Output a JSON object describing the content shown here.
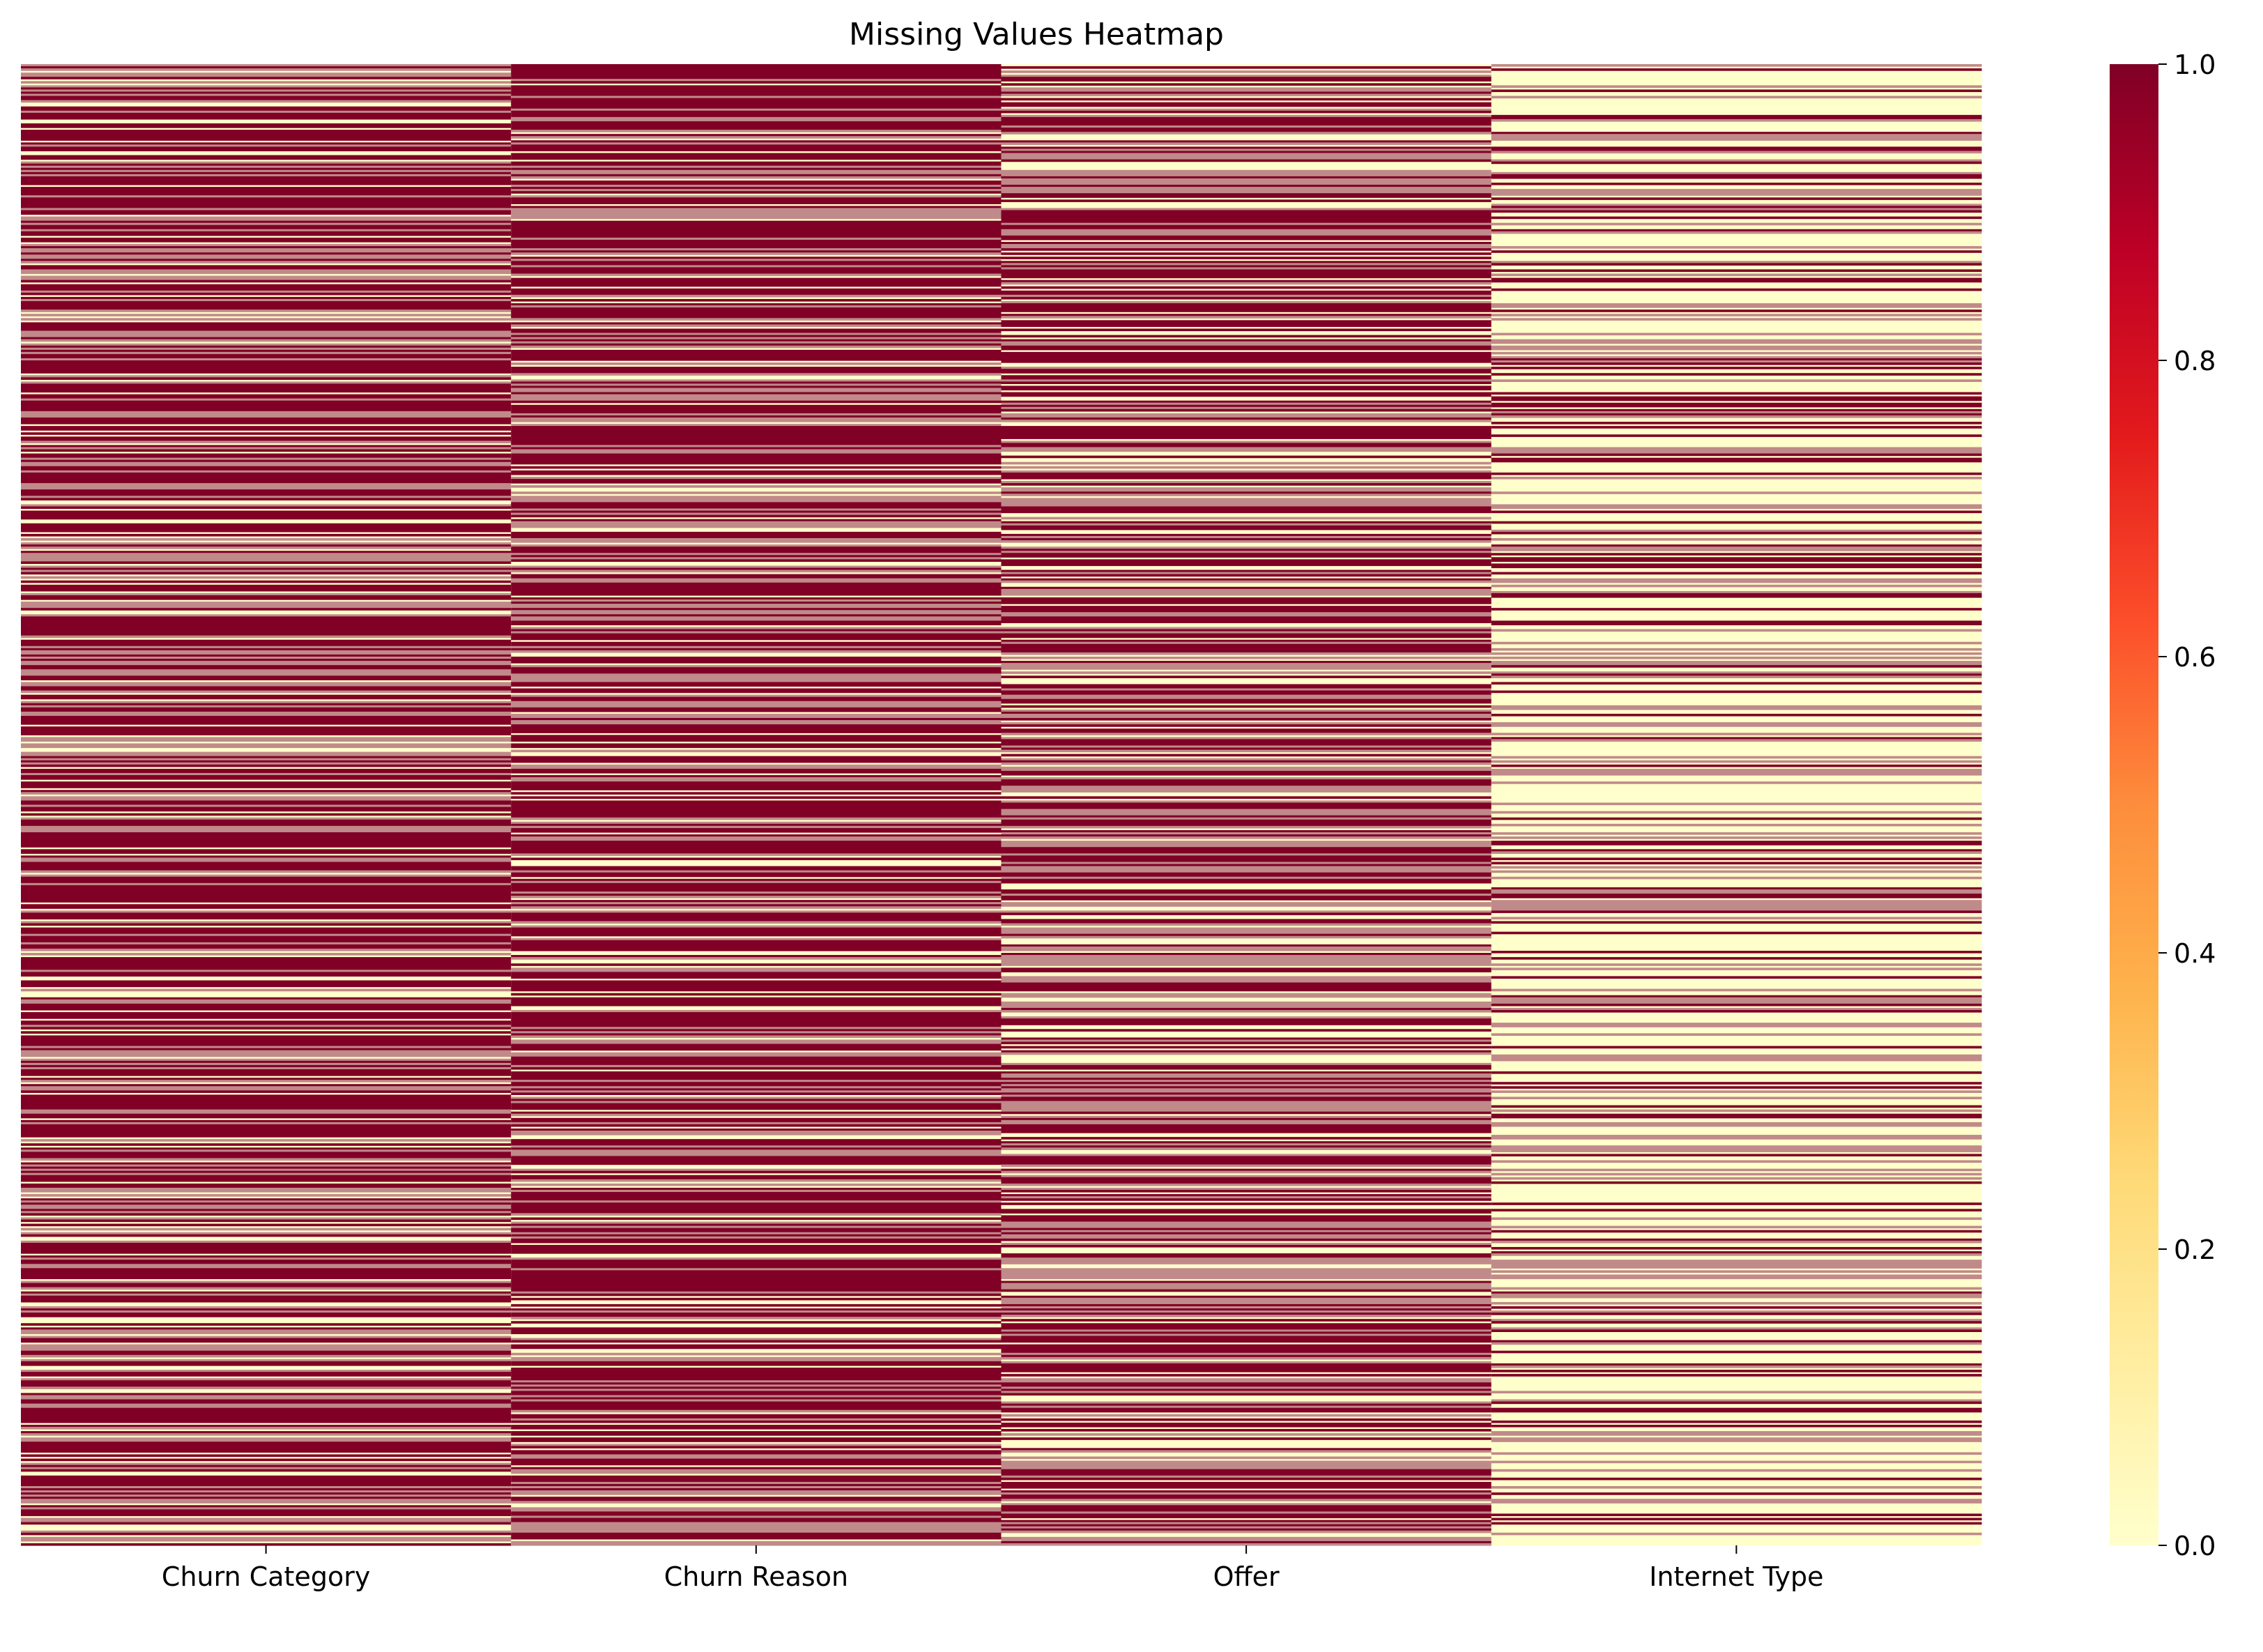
{
  "chart_data": {
    "type": "heatmap",
    "title": "Missing Values Heatmap",
    "xlabel": "",
    "ylabel": "",
    "columns": [
      "Churn Category",
      "Churn Reason",
      "Offer",
      "Internet Type"
    ],
    "values_description_note": null,
    "colormap": "YlOrRd",
    "colorbar": {
      "min": 0.0,
      "max": 1.0,
      "ticks": [
        0.0,
        0.2,
        0.4,
        0.6,
        0.8,
        1.0
      ],
      "tick_labels": [
        "0.0",
        "0.2",
        "0.4",
        "0.6",
        "0.8",
        "1.0"
      ]
    },
    "value_range": [
      0,
      1
    ],
    "row_count_estimate": 7043,
    "missing_fraction_estimate": {
      "Churn Category": 0.73,
      "Churn Reason": 0.73,
      "Offer": 0.55,
      "Internet Type": 0.22
    },
    "grid": false,
    "legend": "colorbar-right"
  },
  "colors": {
    "high": "#800026",
    "low": "#ffffcc",
    "blend": "#c08a8a"
  }
}
